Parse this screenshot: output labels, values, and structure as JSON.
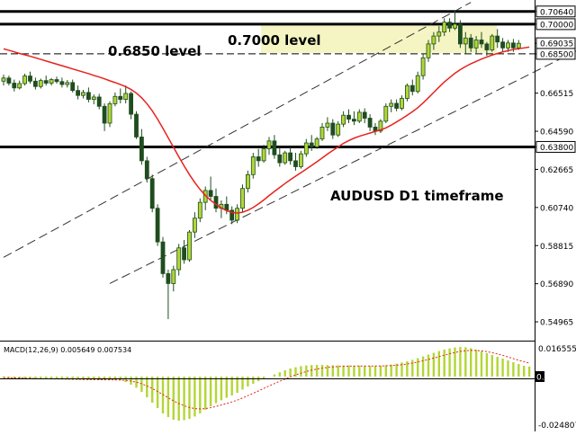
{
  "chart_data": [
    {
      "type": "candlestick",
      "symbol_label": "AUDUSD D1 timeframe",
      "y_ticks": [
        "0.70640",
        "0.70000",
        "0.69035",
        "0.68500",
        "0.66515",
        "0.64590",
        "0.63800",
        "0.62665",
        "0.60740",
        "0.58815",
        "0.56890",
        "0.54965"
      ],
      "ylim": [
        0.5406,
        0.7122
      ],
      "current_price": "0.69035",
      "horizontal_levels": [
        {
          "price": 0.7064,
          "label": "0.70640",
          "style": "solid"
        },
        {
          "price": 0.7,
          "label": "0.70000",
          "style": "solid"
        },
        {
          "price": 0.685,
          "label": "0.68500",
          "style": "dashed"
        },
        {
          "price": 0.638,
          "label": "0.63800",
          "style": "solid"
        }
      ],
      "annotations": [
        {
          "id": "level_07000",
          "text": "0.7000 level"
        },
        {
          "id": "level_06850",
          "text": "0.6850 level"
        }
      ],
      "resistance_zone": {
        "from": 0.6855,
        "to": 0.6995
      },
      "colors": {
        "bull": "#1f4d1f",
        "bull_fill": "#b2d635",
        "bear": "#1f4d1f",
        "bear_fill": "#1f4d1f",
        "ma": "#e8221c",
        "levels": "#000000",
        "zone": "#f4f5c2"
      },
      "channel_lines": [
        {
          "from": [
            0,
            0.5822
          ],
          "to": [
            88,
            0.711
          ],
          "style": "dashed"
        },
        {
          "from": [
            20,
            0.569
          ],
          "to": [
            112,
            0.692
          ],
          "style": "dashed"
        }
      ],
      "candles": [
        {
          "o": 0.6712,
          "h": 0.6745,
          "l": 0.669,
          "c": 0.6728
        },
        {
          "o": 0.6728,
          "h": 0.674,
          "l": 0.669,
          "c": 0.6702
        },
        {
          "o": 0.6702,
          "h": 0.672,
          "l": 0.666,
          "c": 0.6678
        },
        {
          "o": 0.6678,
          "h": 0.6715,
          "l": 0.667,
          "c": 0.67
        },
        {
          "o": 0.67,
          "h": 0.675,
          "l": 0.669,
          "c": 0.6738
        },
        {
          "o": 0.6738,
          "h": 0.676,
          "l": 0.67,
          "c": 0.6712
        },
        {
          "o": 0.6712,
          "h": 0.673,
          "l": 0.667,
          "c": 0.6685
        },
        {
          "o": 0.6685,
          "h": 0.6725,
          "l": 0.6675,
          "c": 0.6715
        },
        {
          "o": 0.6715,
          "h": 0.674,
          "l": 0.669,
          "c": 0.6702
        },
        {
          "o": 0.6702,
          "h": 0.6728,
          "l": 0.669,
          "c": 0.672
        },
        {
          "o": 0.672,
          "h": 0.6735,
          "l": 0.67,
          "c": 0.671
        },
        {
          "o": 0.671,
          "h": 0.673,
          "l": 0.668,
          "c": 0.6695
        },
        {
          "o": 0.6695,
          "h": 0.6718,
          "l": 0.668,
          "c": 0.6705
        },
        {
          "o": 0.6705,
          "h": 0.672,
          "l": 0.6655,
          "c": 0.6665
        },
        {
          "o": 0.6665,
          "h": 0.669,
          "l": 0.662,
          "c": 0.664
        },
        {
          "o": 0.664,
          "h": 0.6668,
          "l": 0.6625,
          "c": 0.6655
        },
        {
          "o": 0.6655,
          "h": 0.668,
          "l": 0.6605,
          "c": 0.662
        },
        {
          "o": 0.662,
          "h": 0.6645,
          "l": 0.6595,
          "c": 0.6632
        },
        {
          "o": 0.6632,
          "h": 0.6648,
          "l": 0.657,
          "c": 0.6585
        },
        {
          "o": 0.6585,
          "h": 0.66,
          "l": 0.646,
          "c": 0.65
        },
        {
          "o": 0.65,
          "h": 0.661,
          "l": 0.648,
          "c": 0.6598
        },
        {
          "o": 0.6598,
          "h": 0.6655,
          "l": 0.6585,
          "c": 0.6635
        },
        {
          "o": 0.6635,
          "h": 0.6675,
          "l": 0.66,
          "c": 0.662
        },
        {
          "o": 0.662,
          "h": 0.669,
          "l": 0.66,
          "c": 0.665
        },
        {
          "o": 0.665,
          "h": 0.666,
          "l": 0.652,
          "c": 0.6545
        },
        {
          "o": 0.6545,
          "h": 0.656,
          "l": 0.642,
          "c": 0.643
        },
        {
          "o": 0.643,
          "h": 0.647,
          "l": 0.629,
          "c": 0.631
        },
        {
          "o": 0.631,
          "h": 0.633,
          "l": 0.62,
          "c": 0.622
        },
        {
          "o": 0.622,
          "h": 0.624,
          "l": 0.605,
          "c": 0.607
        },
        {
          "o": 0.607,
          "h": 0.609,
          "l": 0.588,
          "c": 0.59
        },
        {
          "o": 0.59,
          "h": 0.5925,
          "l": 0.572,
          "c": 0.574
        },
        {
          "o": 0.574,
          "h": 0.576,
          "l": 0.551,
          "c": 0.569
        },
        {
          "o": 0.569,
          "h": 0.578,
          "l": 0.565,
          "c": 0.576
        },
        {
          "o": 0.576,
          "h": 0.589,
          "l": 0.573,
          "c": 0.587
        },
        {
          "o": 0.587,
          "h": 0.591,
          "l": 0.579,
          "c": 0.581
        },
        {
          "o": 0.581,
          "h": 0.596,
          "l": 0.58,
          "c": 0.595
        },
        {
          "o": 0.595,
          "h": 0.605,
          "l": 0.592,
          "c": 0.602
        },
        {
          "o": 0.602,
          "h": 0.612,
          "l": 0.6,
          "c": 0.61
        },
        {
          "o": 0.61,
          "h": 0.618,
          "l": 0.606,
          "c": 0.616
        },
        {
          "o": 0.616,
          "h": 0.623,
          "l": 0.611,
          "c": 0.613
        },
        {
          "o": 0.613,
          "h": 0.617,
          "l": 0.605,
          "c": 0.607
        },
        {
          "o": 0.607,
          "h": 0.611,
          "l": 0.602,
          "c": 0.609
        },
        {
          "o": 0.609,
          "h": 0.613,
          "l": 0.604,
          "c": 0.606
        },
        {
          "o": 0.606,
          "h": 0.608,
          "l": 0.599,
          "c": 0.601
        },
        {
          "o": 0.601,
          "h": 0.609,
          "l": 0.5995,
          "c": 0.607
        },
        {
          "o": 0.607,
          "h": 0.619,
          "l": 0.605,
          "c": 0.617
        },
        {
          "o": 0.617,
          "h": 0.626,
          "l": 0.615,
          "c": 0.624
        },
        {
          "o": 0.624,
          "h": 0.635,
          "l": 0.622,
          "c": 0.633
        },
        {
          "o": 0.633,
          "h": 0.637,
          "l": 0.628,
          "c": 0.631
        },
        {
          "o": 0.631,
          "h": 0.639,
          "l": 0.63,
          "c": 0.637
        },
        {
          "o": 0.637,
          "h": 0.643,
          "l": 0.634,
          "c": 0.641
        },
        {
          "o": 0.641,
          "h": 0.644,
          "l": 0.632,
          "c": 0.634
        },
        {
          "o": 0.634,
          "h": 0.638,
          "l": 0.628,
          "c": 0.63
        },
        {
          "o": 0.63,
          "h": 0.636,
          "l": 0.629,
          "c": 0.635
        },
        {
          "o": 0.635,
          "h": 0.638,
          "l": 0.629,
          "c": 0.631
        },
        {
          "o": 0.631,
          "h": 0.635,
          "l": 0.626,
          "c": 0.628
        },
        {
          "o": 0.628,
          "h": 0.636,
          "l": 0.627,
          "c": 0.6345
        },
        {
          "o": 0.6345,
          "h": 0.642,
          "l": 0.633,
          "c": 0.64
        },
        {
          "o": 0.64,
          "h": 0.644,
          "l": 0.636,
          "c": 0.638
        },
        {
          "o": 0.638,
          "h": 0.643,
          "l": 0.637,
          "c": 0.642
        },
        {
          "o": 0.642,
          "h": 0.65,
          "l": 0.641,
          "c": 0.648
        },
        {
          "o": 0.648,
          "h": 0.653,
          "l": 0.646,
          "c": 0.65
        },
        {
          "o": 0.65,
          "h": 0.652,
          "l": 0.642,
          "c": 0.644
        },
        {
          "o": 0.644,
          "h": 0.651,
          "l": 0.643,
          "c": 0.6495
        },
        {
          "o": 0.6495,
          "h": 0.656,
          "l": 0.648,
          "c": 0.654
        },
        {
          "o": 0.654,
          "h": 0.657,
          "l": 0.65,
          "c": 0.652
        },
        {
          "o": 0.652,
          "h": 0.656,
          "l": 0.649,
          "c": 0.651
        },
        {
          "o": 0.651,
          "h": 0.657,
          "l": 0.65,
          "c": 0.6555
        },
        {
          "o": 0.6555,
          "h": 0.6575,
          "l": 0.65,
          "c": 0.6525
        },
        {
          "o": 0.6525,
          "h": 0.6545,
          "l": 0.646,
          "c": 0.648
        },
        {
          "o": 0.648,
          "h": 0.65,
          "l": 0.644,
          "c": 0.646
        },
        {
          "o": 0.646,
          "h": 0.652,
          "l": 0.645,
          "c": 0.651
        },
        {
          "o": 0.651,
          "h": 0.66,
          "l": 0.65,
          "c": 0.6585
        },
        {
          "o": 0.6585,
          "h": 0.662,
          "l": 0.6555,
          "c": 0.66
        },
        {
          "o": 0.66,
          "h": 0.662,
          "l": 0.656,
          "c": 0.6575
        },
        {
          "o": 0.6575,
          "h": 0.664,
          "l": 0.6565,
          "c": 0.6625
        },
        {
          "o": 0.6625,
          "h": 0.67,
          "l": 0.661,
          "c": 0.669
        },
        {
          "o": 0.669,
          "h": 0.672,
          "l": 0.664,
          "c": 0.666
        },
        {
          "o": 0.666,
          "h": 0.676,
          "l": 0.665,
          "c": 0.674
        },
        {
          "o": 0.674,
          "h": 0.685,
          "l": 0.672,
          "c": 0.683
        },
        {
          "o": 0.683,
          "h": 0.692,
          "l": 0.681,
          "c": 0.69
        },
        {
          "o": 0.69,
          "h": 0.696,
          "l": 0.687,
          "c": 0.694
        },
        {
          "o": 0.694,
          "h": 0.699,
          "l": 0.691,
          "c": 0.696
        },
        {
          "o": 0.696,
          "h": 0.703,
          "l": 0.694,
          "c": 0.701
        },
        {
          "o": 0.701,
          "h": 0.703,
          "l": 0.696,
          "c": 0.698
        },
        {
          "o": 0.698,
          "h": 0.7064,
          "l": 0.697,
          "c": 0.7
        },
        {
          "o": 0.7,
          "h": 0.702,
          "l": 0.688,
          "c": 0.69
        },
        {
          "o": 0.69,
          "h": 0.696,
          "l": 0.685,
          "c": 0.693
        },
        {
          "o": 0.693,
          "h": 0.695,
          "l": 0.686,
          "c": 0.688
        },
        {
          "o": 0.688,
          "h": 0.694,
          "l": 0.685,
          "c": 0.692
        },
        {
          "o": 0.692,
          "h": 0.696,
          "l": 0.688,
          "c": 0.69
        },
        {
          "o": 0.69,
          "h": 0.691,
          "l": 0.684,
          "c": 0.687
        },
        {
          "o": 0.687,
          "h": 0.695,
          "l": 0.686,
          "c": 0.694
        },
        {
          "o": 0.694,
          "h": 0.6975,
          "l": 0.688,
          "c": 0.691
        },
        {
          "o": 0.691,
          "h": 0.693,
          "l": 0.686,
          "c": 0.688
        },
        {
          "o": 0.688,
          "h": 0.692,
          "l": 0.686,
          "c": 0.6905
        },
        {
          "o": 0.6905,
          "h": 0.6925,
          "l": 0.686,
          "c": 0.688
        },
        {
          "o": 0.688,
          "h": 0.692,
          "l": 0.687,
          "c": 0.6903
        }
      ],
      "ma": [
        0.6875,
        0.6868,
        0.686,
        0.6852,
        0.6845,
        0.6838,
        0.683,
        0.6822,
        0.6814,
        0.6806,
        0.6798,
        0.679,
        0.6782,
        0.6774,
        0.6766,
        0.6758,
        0.675,
        0.6741,
        0.6733,
        0.6724,
        0.6714,
        0.6705,
        0.6695,
        0.6684,
        0.667,
        0.6652,
        0.6628,
        0.6598,
        0.6562,
        0.652,
        0.6474,
        0.6426,
        0.6378,
        0.633,
        0.6284,
        0.624,
        0.62,
        0.6165,
        0.6135,
        0.611,
        0.609,
        0.6072,
        0.6058,
        0.6049,
        0.6046,
        0.605,
        0.606,
        0.6074,
        0.6092,
        0.6112,
        0.6134,
        0.6155,
        0.6175,
        0.6195,
        0.6214,
        0.6232,
        0.625,
        0.6268,
        0.6286,
        0.6305,
        0.6324,
        0.6344,
        0.6362,
        0.638,
        0.6398,
        0.6412,
        0.6424,
        0.6434,
        0.6442,
        0.645,
        0.6458,
        0.6466,
        0.6476,
        0.649,
        0.6506,
        0.6522,
        0.654,
        0.6558,
        0.6578,
        0.6602,
        0.6628,
        0.6655,
        0.6682,
        0.6708,
        0.673,
        0.6752,
        0.677,
        0.6786,
        0.68,
        0.6812,
        0.6824,
        0.6834,
        0.6844,
        0.6852,
        0.686,
        0.6866,
        0.6872,
        0.6876,
        0.688,
        0.6884
      ],
      "macd": {
        "label": "MACD(12,26,9) 0.005649 0.007534",
        "y_ticks": [
          "0.016555",
          "0.00",
          "-0.024807"
        ],
        "ylim": [
          -0.0265,
          0.018
        ],
        "histogram": [
          -0.0008,
          -0.0009,
          -0.001,
          -0.0011,
          -0.0012,
          -0.0012,
          -0.0013,
          -0.0013,
          -0.0014,
          -0.0014,
          -0.0015,
          -0.0015,
          -0.0016,
          -0.0016,
          -0.0017,
          -0.0017,
          -0.0018,
          -0.0018,
          -0.0019,
          -0.0019,
          -0.002,
          -0.002,
          -0.0021,
          -0.003,
          -0.0045,
          -0.0062,
          -0.0085,
          -0.0115,
          -0.0145,
          -0.0175,
          -0.0205,
          -0.0225,
          -0.024,
          -0.0245,
          -0.0242,
          -0.0235,
          -0.0222,
          -0.0205,
          -0.0185,
          -0.0165,
          -0.0148,
          -0.0132,
          -0.0118,
          -0.0105,
          -0.009,
          -0.0072,
          -0.0055,
          -0.004,
          -0.0026,
          -0.0012,
          0.0,
          0.0012,
          0.0024,
          0.0035,
          0.0045,
          0.0052,
          0.0058,
          0.0062,
          0.0064,
          0.0065,
          0.0065,
          0.0064,
          0.0063,
          0.0062,
          0.0062,
          0.0062,
          0.0061,
          0.0061,
          0.006,
          0.006,
          0.006,
          0.0061,
          0.0063,
          0.0067,
          0.0072,
          0.0078,
          0.0085,
          0.0093,
          0.0102,
          0.0112,
          0.0122,
          0.0132,
          0.0142,
          0.015,
          0.0157,
          0.0162,
          0.0165,
          0.0163,
          0.0158,
          0.015,
          0.014,
          0.013,
          0.012,
          0.011,
          0.01,
          0.009,
          0.008,
          0.007,
          0.006,
          0.0056
        ],
        "signal": [
          -0.0005,
          -0.0006,
          -0.0007,
          -0.0008,
          -0.0009,
          -0.001,
          -0.0011,
          -0.0012,
          -0.0012,
          -0.0013,
          -0.0013,
          -0.0014,
          -0.0014,
          -0.0015,
          -0.0015,
          -0.0016,
          -0.0016,
          -0.0017,
          -0.0017,
          -0.0018,
          -0.0018,
          -0.0019,
          -0.0019,
          -0.0021,
          -0.0025,
          -0.0031,
          -0.004,
          -0.0052,
          -0.0066,
          -0.0083,
          -0.01,
          -0.0118,
          -0.0135,
          -0.015,
          -0.0162,
          -0.0172,
          -0.0178,
          -0.018,
          -0.0178,
          -0.0173,
          -0.0166,
          -0.0158,
          -0.015,
          -0.0141,
          -0.0131,
          -0.0119,
          -0.0106,
          -0.0093,
          -0.008,
          -0.0066,
          -0.0052,
          -0.0039,
          -0.0026,
          -0.0014,
          -0.0002,
          0.0009,
          0.0019,
          0.0028,
          0.0036,
          0.0042,
          0.0047,
          0.0051,
          0.0054,
          0.0056,
          0.0057,
          0.0058,
          0.0058,
          0.0059,
          0.0059,
          0.0059,
          0.0059,
          0.0059,
          0.006,
          0.0061,
          0.0063,
          0.0066,
          0.007,
          0.0075,
          0.0081,
          0.0088,
          0.0095,
          0.0103,
          0.0111,
          0.0119,
          0.0127,
          0.0134,
          0.014,
          0.0144,
          0.0146,
          0.0145,
          0.0143,
          0.0139,
          0.0133,
          0.0126,
          0.0118,
          0.0109,
          0.01,
          0.0091,
          0.0083,
          0.0075
        ]
      }
    }
  ]
}
